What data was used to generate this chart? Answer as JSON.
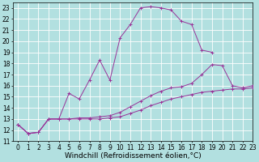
{
  "background_color": "#b2e0e0",
  "grid_color": "#ffffff",
  "line_color": "#993399",
  "xlabel": "Windchill (Refroidissement éolien,°C)",
  "xlim": [
    -0.5,
    23
  ],
  "ylim": [
    11,
    23.5
  ],
  "yticks": [
    11,
    12,
    13,
    14,
    15,
    16,
    17,
    18,
    19,
    20,
    21,
    22,
    23
  ],
  "xticks": [
    0,
    1,
    2,
    3,
    4,
    5,
    6,
    7,
    8,
    9,
    10,
    11,
    12,
    13,
    14,
    15,
    16,
    17,
    18,
    19,
    20,
    21,
    22,
    23
  ],
  "line1_x": [
    0,
    1,
    2,
    3,
    4,
    5,
    6,
    7,
    8,
    9,
    10,
    11,
    12,
    13,
    14,
    15,
    16,
    17,
    18,
    19
  ],
  "line1_y": [
    12.5,
    11.7,
    11.8,
    13.0,
    13.0,
    15.3,
    14.8,
    16.5,
    18.3,
    16.5,
    20.3,
    21.5,
    23.0,
    23.1,
    23.0,
    22.8,
    21.8,
    21.5,
    19.2,
    19.0
  ],
  "line2_x": [
    0,
    1,
    2,
    3,
    4,
    5,
    6,
    7,
    8,
    9,
    10,
    11,
    12,
    13,
    14,
    15,
    16,
    17,
    18,
    19,
    20,
    21,
    22,
    23
  ],
  "line2_y": [
    12.5,
    11.7,
    11.8,
    13.0,
    13.0,
    13.0,
    13.1,
    13.1,
    13.2,
    13.3,
    13.6,
    14.1,
    14.6,
    15.1,
    15.5,
    15.8,
    15.9,
    16.2,
    17.0,
    17.9,
    17.8,
    16.0,
    15.8,
    16.0
  ],
  "line3_x": [
    0,
    1,
    2,
    3,
    4,
    5,
    6,
    7,
    8,
    9,
    10,
    11,
    12,
    13,
    14,
    15,
    16,
    17,
    18,
    19,
    20,
    21,
    22,
    23
  ],
  "line3_y": [
    12.5,
    11.7,
    11.8,
    13.0,
    13.0,
    13.0,
    13.0,
    13.0,
    13.0,
    13.1,
    13.2,
    13.5,
    13.8,
    14.2,
    14.5,
    14.8,
    15.0,
    15.2,
    15.4,
    15.5,
    15.6,
    15.7,
    15.7,
    15.8
  ],
  "tick_fontsize": 5.5,
  "label_fontsize": 6.5
}
